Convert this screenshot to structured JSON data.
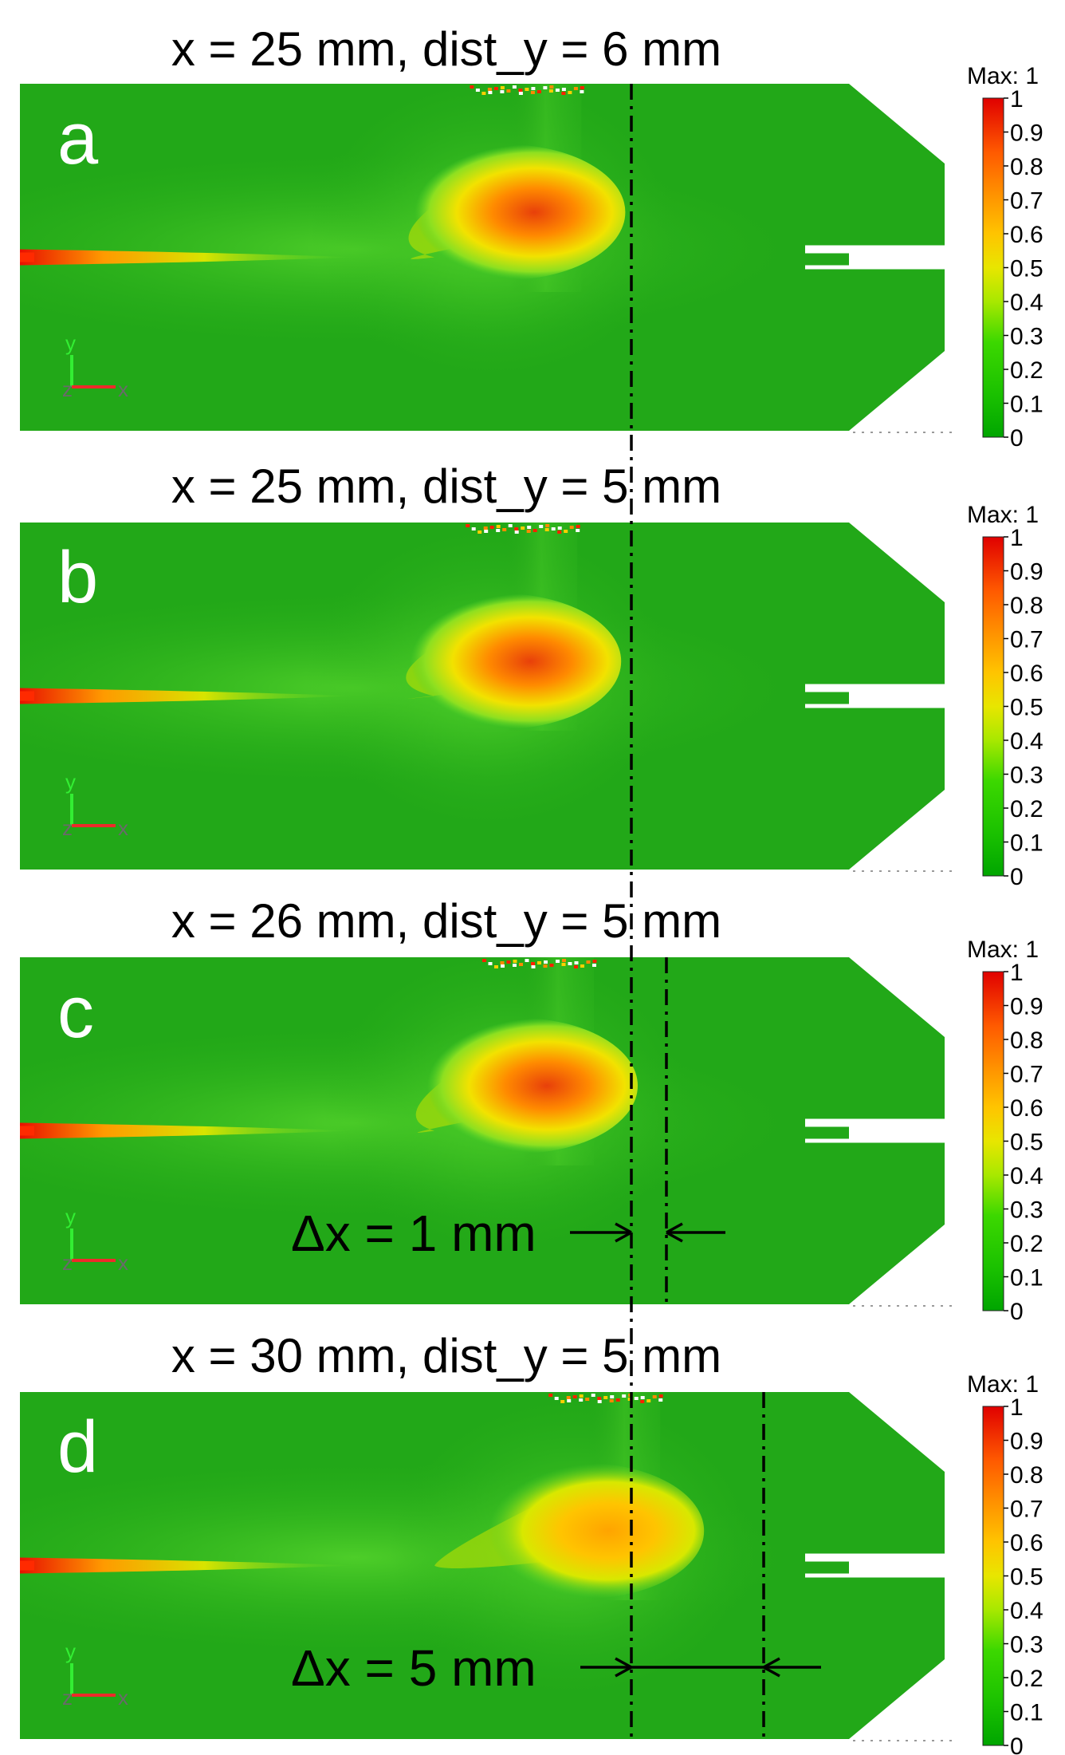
{
  "panels": [
    {
      "label": "a",
      "title": "x = 25 mm, dist_y = 6 mm",
      "hot_x": 0.61,
      "hot_y": 0.37,
      "hot_level": 0.65
    },
    {
      "label": "b",
      "title": "x = 25 mm, dist_y = 5 mm",
      "hot_x": 0.605,
      "hot_y": 0.4,
      "hot_level": 0.7
    },
    {
      "label": "c",
      "title": "x = 26 mm, dist_y = 5 mm",
      "hot_x": 0.625,
      "hot_y": 0.37,
      "hot_level": 0.65
    },
    {
      "label": "d",
      "title": "x = 30 mm, dist_y = 5 mm",
      "hot_x": 0.705,
      "hot_y": 0.4,
      "hot_level": 0.6
    }
  ],
  "colorbar": {
    "max_label": "Max: 1",
    "ticks": [
      "1",
      "0.9",
      "0.8",
      "0.7",
      "0.6",
      "0.5",
      "0.4",
      "0.3",
      "0.2",
      "0.1",
      "0"
    ],
    "colors": [
      "#00a500",
      "#19c000",
      "#33dd00",
      "#9fe800",
      "#e6e600",
      "#ffc800",
      "#ff9a00",
      "#ff6a00",
      "#ff3200",
      "#e00000"
    ]
  },
  "axes": {
    "y": "y",
    "z": "z",
    "x": "x"
  },
  "annotations": {
    "dx1": "Δx = 1 mm",
    "dx2": "Δx = 5 mm"
  },
  "colors": {
    "field_base": "#22a818",
    "field_mid": "#4fd42a",
    "hot": "#ff7a00",
    "core": "#e8400a",
    "jet": "#ff2a00"
  }
}
